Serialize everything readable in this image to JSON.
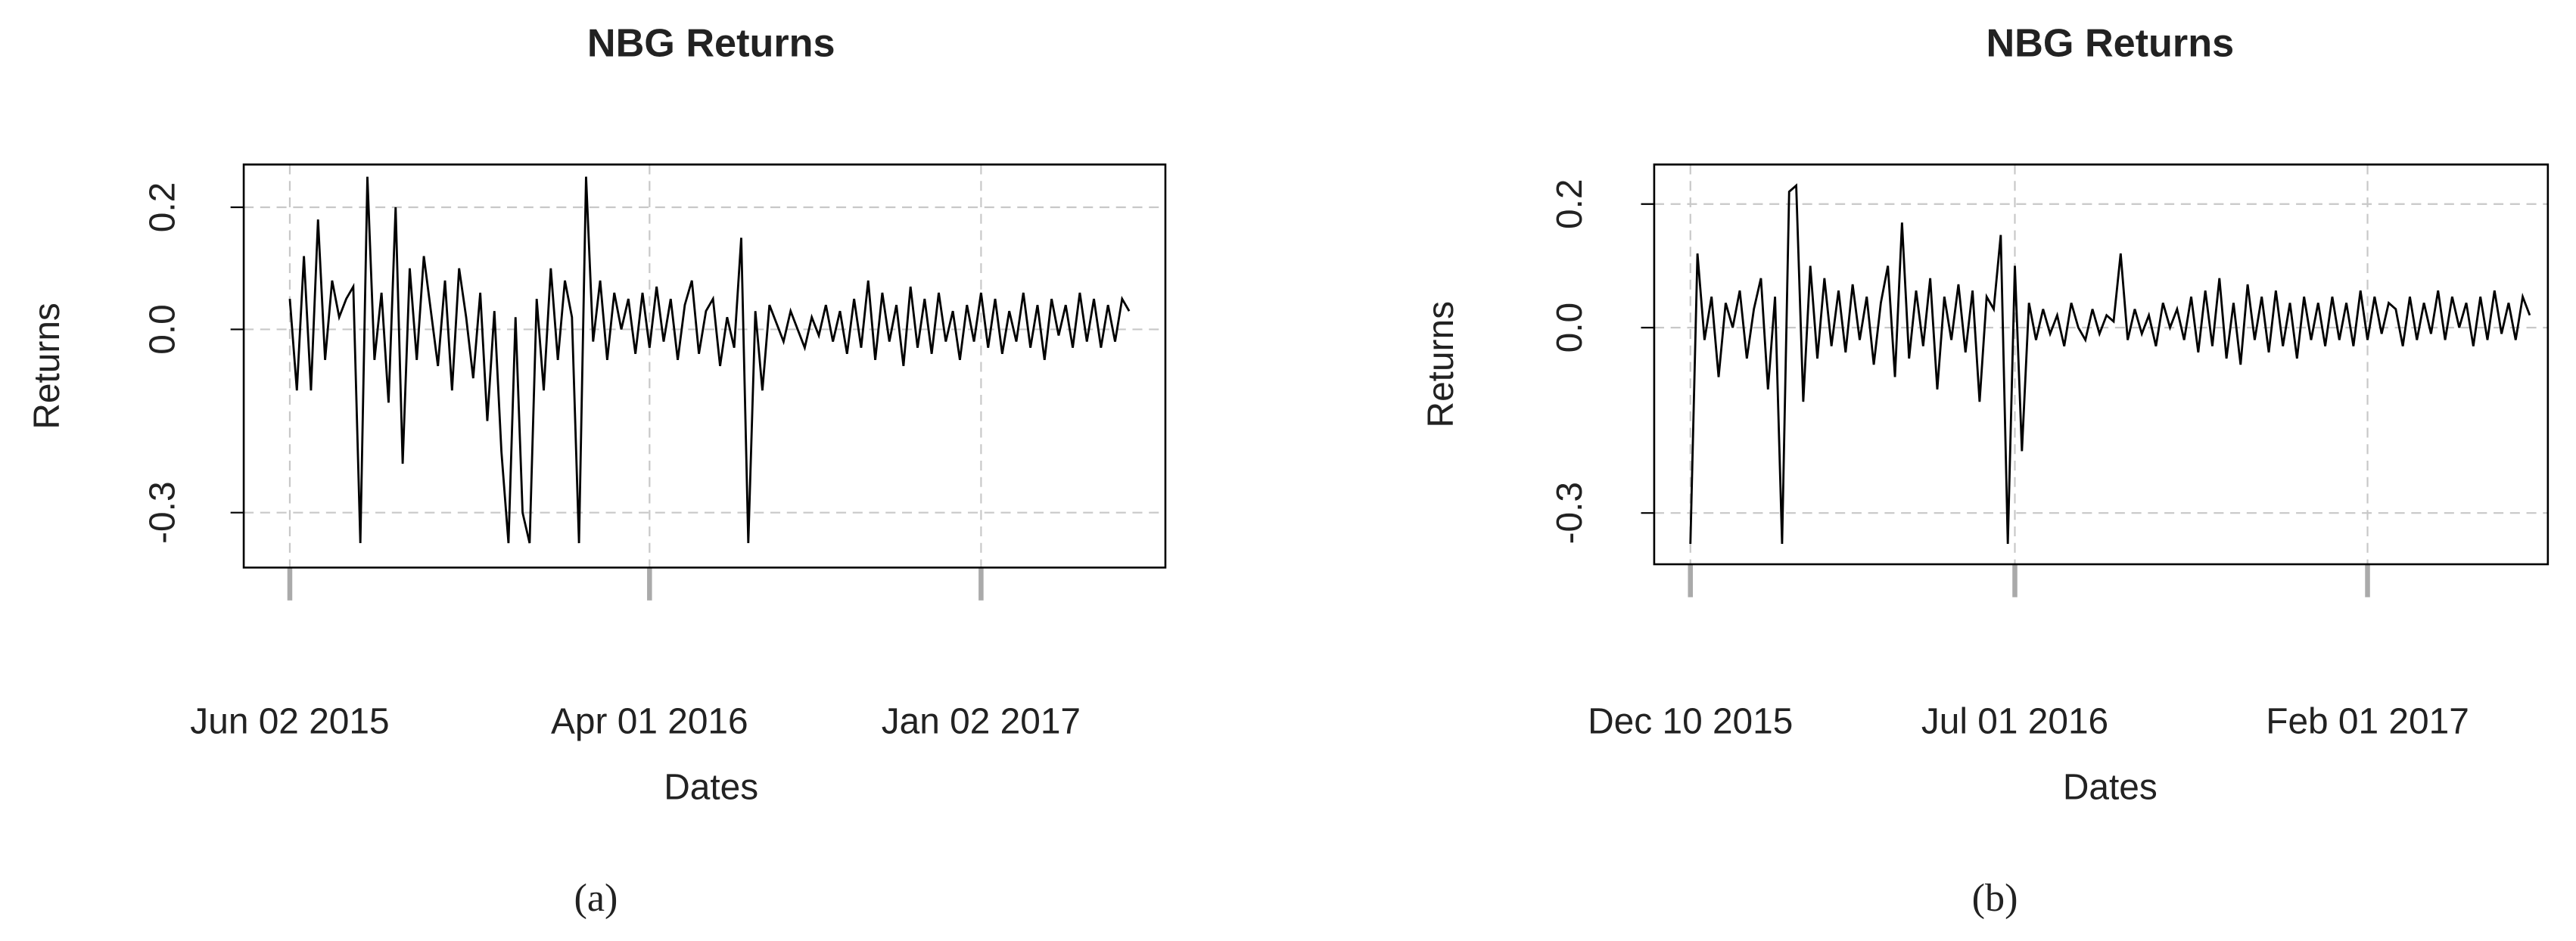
{
  "chart_data": [
    {
      "type": "line",
      "title": "NBG Returns",
      "x_label": "Dates",
      "y_label": "Returns",
      "caption": "(a)",
      "color": "#000000",
      "grid": true,
      "ylim": [
        -0.39,
        0.27
      ],
      "yticks": [
        0.2,
        {
          "value": 0,
          "label": "0.0"
        },
        -0.3
      ],
      "categories": [
        "Jun 02 2015",
        null,
        null,
        null,
        null,
        null,
        null,
        null,
        null,
        null,
        null,
        null,
        null,
        null,
        null,
        null,
        null,
        null,
        null,
        null,
        null,
        null,
        null,
        null,
        null,
        null,
        null,
        null,
        null,
        null,
        null,
        null,
        null,
        null,
        null,
        null,
        null,
        null,
        null,
        null,
        null,
        null,
        null,
        null,
        null,
        null,
        null,
        null,
        null,
        null,
        null,
        "Apr 01 2016",
        null,
        null,
        null,
        null,
        null,
        null,
        null,
        null,
        null,
        null,
        null,
        null,
        null,
        null,
        null,
        null,
        null,
        null,
        null,
        null,
        null,
        null,
        null,
        null,
        null,
        null,
        null,
        null,
        null,
        null,
        null,
        null,
        null,
        null,
        null,
        null,
        null,
        null,
        null,
        null,
        null,
        null,
        null,
        null,
        null,
        null,
        "Jan 02 2017",
        null,
        null,
        null,
        null,
        null,
        null,
        null,
        null,
        null,
        null,
        null,
        null,
        null,
        null,
        null,
        null,
        null,
        null,
        null,
        null,
        null
      ],
      "values": [
        0.05,
        -0.1,
        0.12,
        -0.1,
        0.18,
        -0.05,
        0.08,
        0.02,
        0.05,
        0.07,
        -0.35,
        0.25,
        -0.05,
        0.06,
        -0.12,
        0.2,
        -0.22,
        0.1,
        -0.05,
        0.12,
        0.03,
        -0.06,
        0.08,
        -0.1,
        0.1,
        0.02,
        -0.08,
        0.06,
        -0.15,
        0.03,
        -0.2,
        -0.35,
        0.02,
        -0.3,
        -0.35,
        0.05,
        -0.1,
        0.1,
        -0.05,
        0.08,
        0.02,
        -0.35,
        0.25,
        -0.02,
        0.08,
        -0.05,
        0.06,
        0.0,
        0.05,
        -0.04,
        0.06,
        -0.03,
        0.07,
        -0.02,
        0.05,
        -0.05,
        0.04,
        0.08,
        -0.04,
        0.03,
        0.05,
        -0.06,
        0.02,
        -0.03,
        0.15,
        -0.35,
        0.03,
        -0.1,
        0.04,
        0.01,
        -0.02,
        0.03,
        0.0,
        -0.03,
        0.02,
        -0.01,
        0.04,
        -0.02,
        0.03,
        -0.04,
        0.05,
        -0.03,
        0.08,
        -0.05,
        0.06,
        -0.02,
        0.04,
        -0.06,
        0.07,
        -0.03,
        0.05,
        -0.04,
        0.06,
        -0.02,
        0.03,
        -0.05,
        0.04,
        -0.02,
        0.06,
        -0.03,
        0.05,
        -0.04,
        0.03,
        -0.02,
        0.06,
        -0.03,
        0.04,
        -0.05,
        0.05,
        -0.01,
        0.04,
        -0.03,
        0.06,
        -0.02,
        0.05,
        -0.03,
        0.04,
        -0.02,
        0.05,
        0.03
      ]
    },
    {
      "type": "line",
      "title": "NBG Returns",
      "x_label": "Dates",
      "y_label": "Returns",
      "caption": "(b)",
      "color": "#000000",
      "grid": true,
      "ylim": [
        -0.383,
        0.264
      ],
      "yticks": [
        0.2,
        {
          "value": 0,
          "label": "0.0"
        },
        -0.3
      ],
      "categories": [
        "Dec 10 2015",
        null,
        null,
        null,
        null,
        null,
        null,
        null,
        null,
        null,
        null,
        null,
        null,
        null,
        null,
        null,
        null,
        null,
        null,
        null,
        null,
        null,
        null,
        null,
        null,
        null,
        null,
        null,
        null,
        null,
        null,
        null,
        null,
        null,
        null,
        null,
        null,
        null,
        null,
        null,
        null,
        null,
        null,
        null,
        null,
        null,
        "Jul 01 2016",
        null,
        null,
        null,
        null,
        null,
        null,
        null,
        null,
        null,
        null,
        null,
        null,
        null,
        null,
        null,
        null,
        null,
        null,
        null,
        null,
        null,
        null,
        null,
        null,
        null,
        null,
        null,
        null,
        null,
        null,
        null,
        null,
        null,
        null,
        null,
        null,
        null,
        null,
        null,
        null,
        null,
        null,
        null,
        null,
        null,
        null,
        null,
        null,
        null,
        "Feb 01 2017",
        null,
        null,
        null,
        null,
        null,
        null,
        null,
        null,
        null,
        null,
        null,
        null,
        null,
        null,
        null,
        null,
        null,
        null,
        null,
        null,
        null,
        null,
        null
      ],
      "values": [
        -0.35,
        0.12,
        -0.02,
        0.05,
        -0.08,
        0.04,
        0.0,
        0.06,
        -0.05,
        0.03,
        0.08,
        -0.1,
        0.05,
        -0.35,
        0.22,
        0.23,
        -0.12,
        0.1,
        -0.05,
        0.08,
        -0.03,
        0.06,
        -0.04,
        0.07,
        -0.02,
        0.05,
        -0.06,
        0.04,
        0.1,
        -0.08,
        0.17,
        -0.05,
        0.06,
        -0.03,
        0.08,
        -0.1,
        0.05,
        -0.02,
        0.07,
        -0.04,
        0.06,
        -0.12,
        0.05,
        0.03,
        0.15,
        -0.35,
        0.1,
        -0.2,
        0.04,
        -0.02,
        0.03,
        -0.01,
        0.02,
        -0.03,
        0.04,
        0.0,
        -0.02,
        0.03,
        -0.01,
        0.02,
        0.01,
        0.12,
        -0.02,
        0.03,
        -0.01,
        0.02,
        -0.03,
        0.04,
        0.0,
        0.03,
        -0.02,
        0.05,
        -0.04,
        0.06,
        -0.03,
        0.08,
        -0.05,
        0.04,
        -0.06,
        0.07,
        -0.02,
        0.05,
        -0.04,
        0.06,
        -0.03,
        0.04,
        -0.05,
        0.05,
        -0.02,
        0.04,
        -0.03,
        0.05,
        -0.02,
        0.04,
        -0.03,
        0.06,
        -0.02,
        0.05,
        -0.01,
        0.04,
        0.03,
        -0.03,
        0.05,
        -0.02,
        0.04,
        -0.01,
        0.06,
        -0.02,
        0.05,
        0.0,
        0.04,
        -0.03,
        0.05,
        -0.02,
        0.06,
        -0.01,
        0.04,
        -0.02,
        0.05,
        0.02
      ]
    }
  ]
}
